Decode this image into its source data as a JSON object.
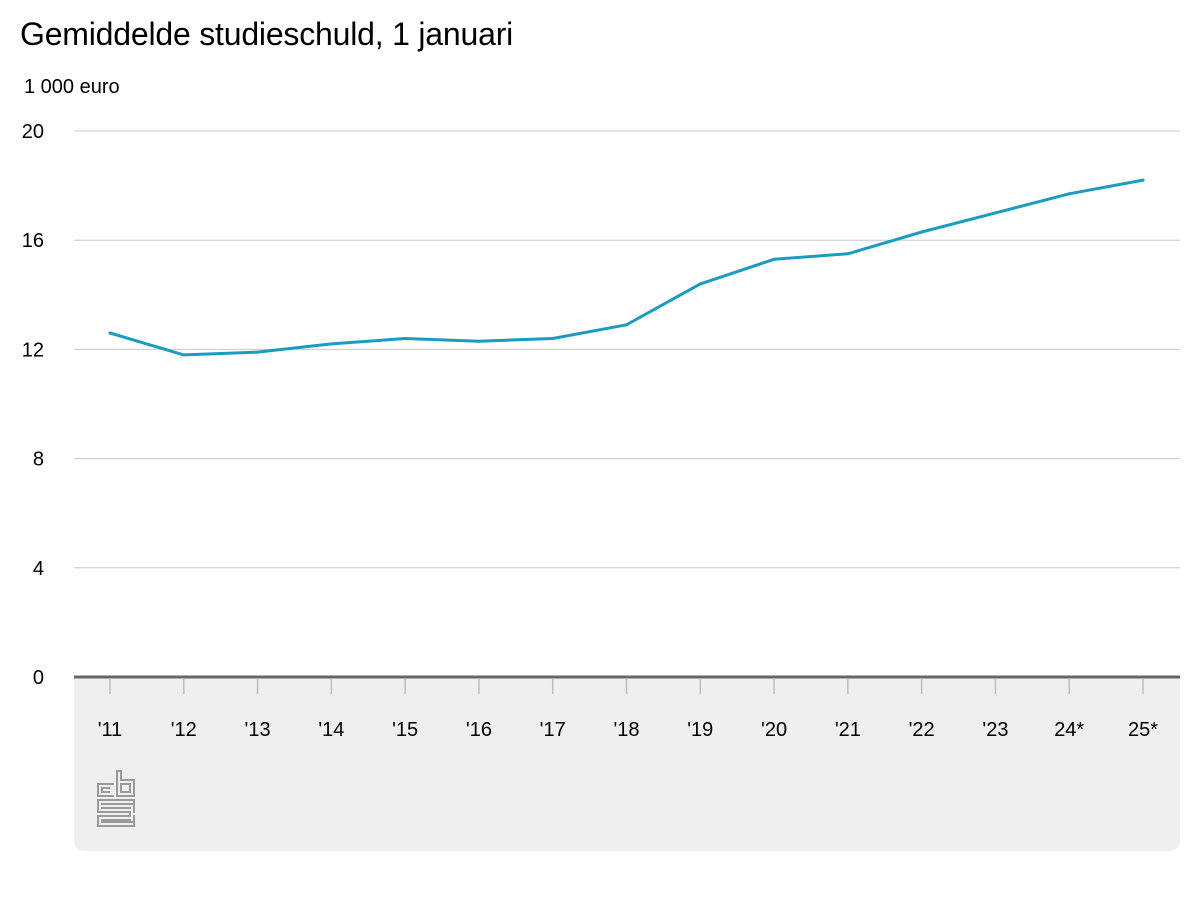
{
  "chart_data": {
    "type": "line",
    "title": "Gemiddelde studieschuld, 1 januari",
    "ylabel": "1 000 euro",
    "xlabel": "",
    "categories": [
      "'11",
      "'12",
      "'13",
      "'14",
      "'15",
      "'16",
      "'17",
      "'18",
      "'19",
      "'20",
      "'21",
      "'22",
      "'23",
      "24*",
      "25*"
    ],
    "series": [
      {
        "values": [
          12.6,
          11.8,
          11.9,
          12.2,
          12.4,
          12.3,
          12.4,
          12.9,
          14.4,
          15.3,
          15.5,
          16.3,
          17.0,
          17.7,
          18.2
        ]
      }
    ],
    "ylim": [
      0,
      20
    ],
    "yticks": [
      0,
      4,
      8,
      12,
      16,
      20
    ],
    "grid": true,
    "line_color": "#1a9cc0",
    "grid_color": "#c8c8c8",
    "axis_color": "#666666",
    "footer_color": "#efefef"
  },
  "logo": {
    "name": "cbs",
    "color": "#9a9a9a"
  }
}
